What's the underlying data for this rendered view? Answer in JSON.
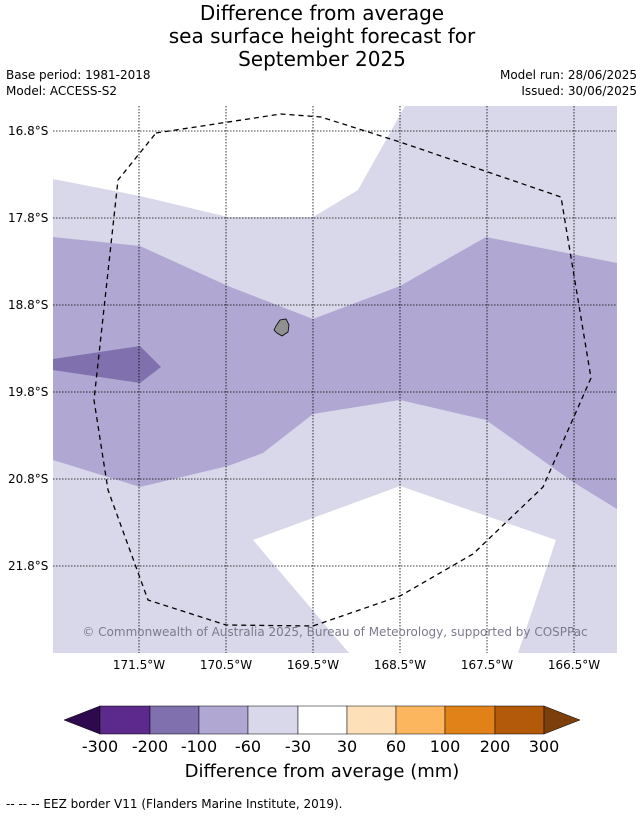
{
  "header": {
    "title_line1": "Difference from average",
    "title_line2": "sea surface height forecast for",
    "title_line3": "September 2025",
    "base_period": "Base period: 1981-2018",
    "model": "Model: ACCESS-S2",
    "model_run": "Model run: 28/06/2025",
    "issued": "Issued: 30/06/2025"
  },
  "map": {
    "latitudes": [
      "16.8°S",
      "17.8°S",
      "18.8°S",
      "19.8°S",
      "20.8°S",
      "21.8°S"
    ],
    "longitudes": [
      "171.5°W",
      "170.5°W",
      "169.5°W",
      "168.5°W",
      "167.5°W",
      "166.5°W"
    ],
    "copyright": "© Commonwealth of Australia 2025, Bureau of Meteorology, supported by COSPPac"
  },
  "colorbar": {
    "title": "Difference from average (mm)",
    "labels": [
      "-300",
      "-200",
      "-100",
      "-60",
      "-30",
      "30",
      "60",
      "100",
      "200",
      "300"
    ],
    "colors": {
      "lt_minus300": "#2d0a4e",
      "minus300_minus200": "#5c2a8c",
      "minus200_minus100": "#8070ae",
      "minus100_minus60": "#b0a8d2",
      "minus60_minus30": "#d8d8ea",
      "minus30_30": "#ffffff",
      "30_60": "#fde0b8",
      "60_100": "#fbb65e",
      "100_200": "#e08218",
      "200_300": "#b25a0a",
      "gt_300": "#7c3f0c"
    }
  },
  "footer": {
    "eez_note": "--  --  -- EEZ border V11 (Flanders Marine Institute, 2019)."
  }
}
